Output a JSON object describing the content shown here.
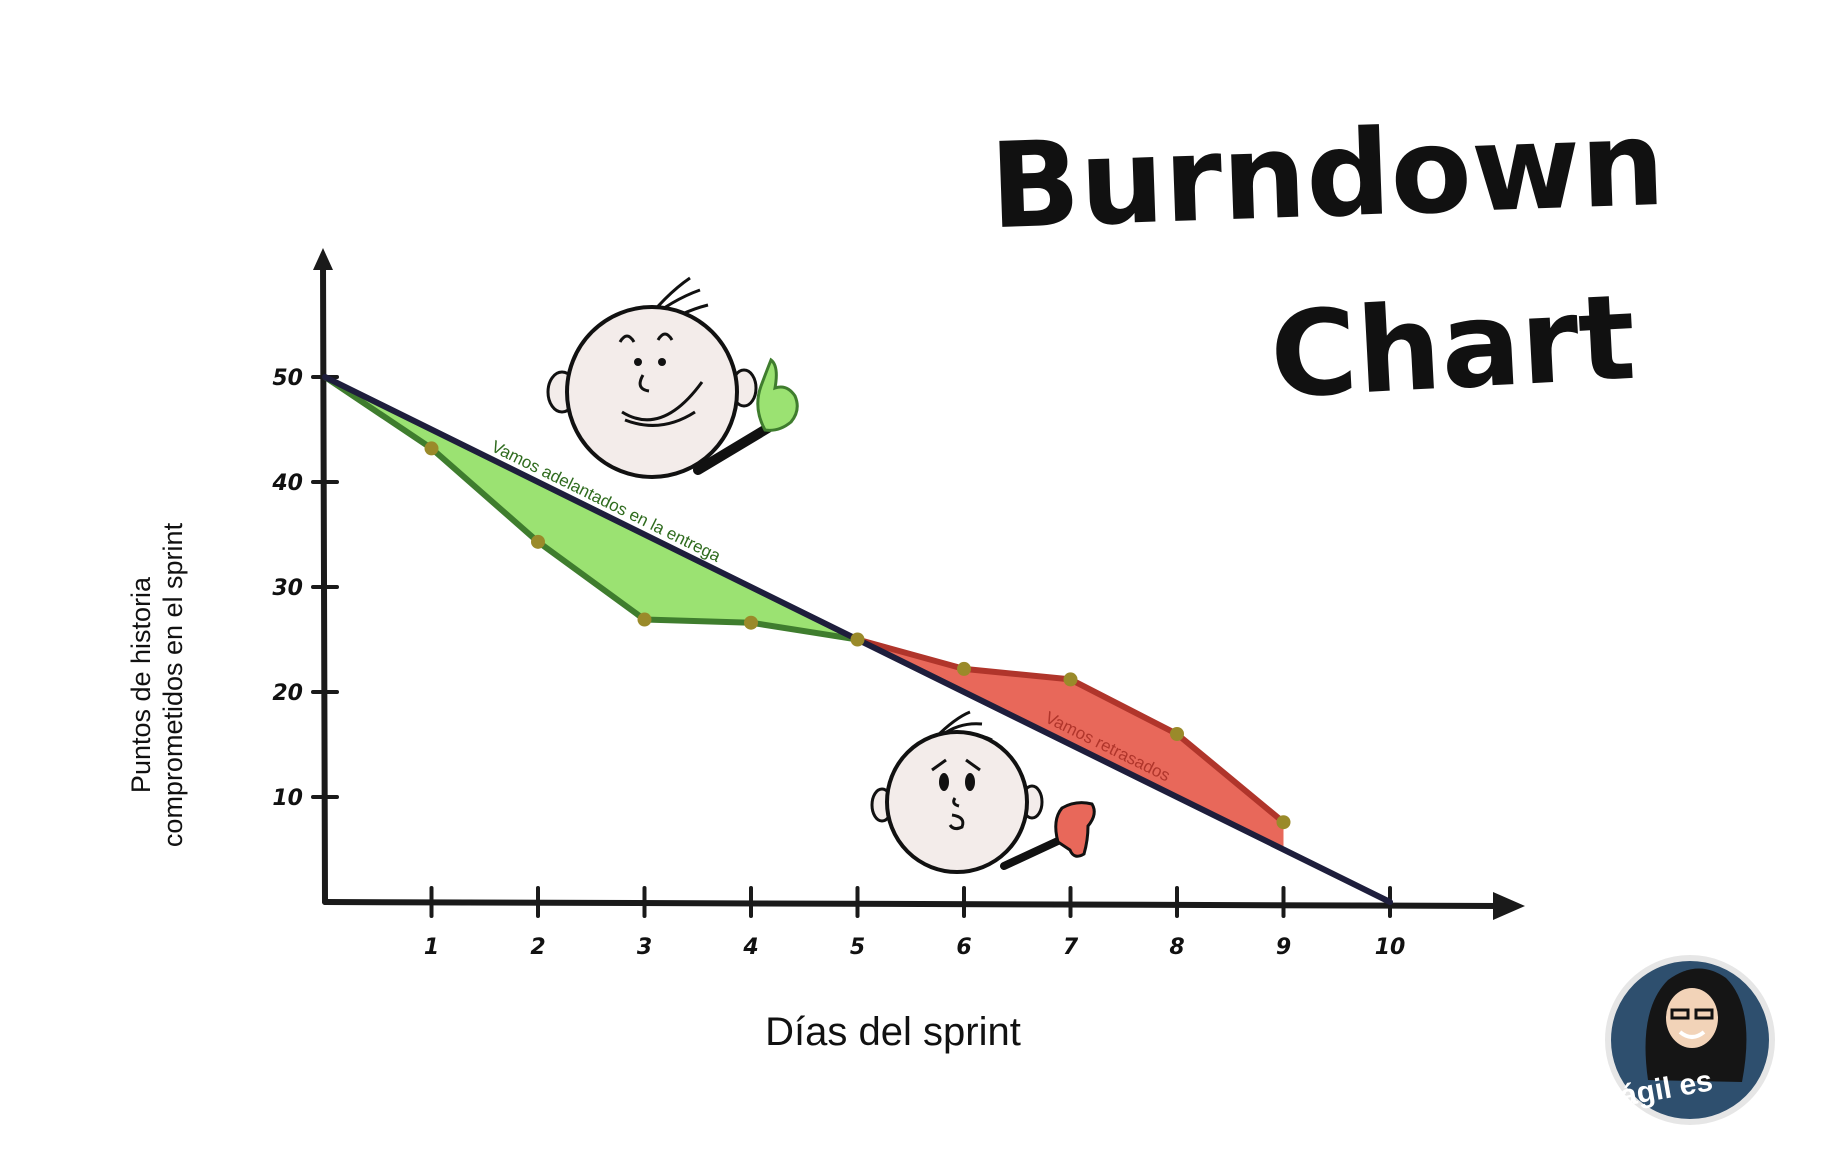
{
  "title": {
    "line1": "Burndown",
    "line2": "Chart"
  },
  "logo": {
    "text": "ágil es"
  },
  "colors": {
    "ideal_line": "#1e1e3c",
    "ahead_fill": "#9be272",
    "ahead_stroke": "#3f7d2e",
    "behind_fill": "#e8685a",
    "behind_stroke": "#b0352b",
    "point": "#9a8a2a",
    "ahead_text": "#2f6b1e",
    "behind_text": "#b0352b",
    "logo_bg": "#2e4f6e"
  },
  "chart_data": {
    "type": "line",
    "xlabel": "Días del sprint",
    "ylabel": [
      "Puntos de historia",
      "comprometidos en el sprint"
    ],
    "x_ticks": [
      1,
      2,
      3,
      4,
      5,
      6,
      7,
      8,
      9,
      10
    ],
    "y_ticks": [
      10,
      20,
      30,
      40,
      50
    ],
    "xlim": [
      0,
      11.4
    ],
    "ylim": [
      0,
      62
    ],
    "series": [
      {
        "role": "ideal",
        "x": [
          0,
          10
        ],
        "values": [
          50,
          0
        ]
      },
      {
        "role": "actual",
        "x": [
          0,
          1,
          2,
          3,
          4,
          5,
          6,
          7,
          8,
          9
        ],
        "values": [
          50,
          43.2,
          34.3,
          26.9,
          26.6,
          25.0,
          22.2,
          21.2,
          16.0,
          7.6
        ]
      }
    ],
    "annotations": {
      "ahead": "Vamos adelantados en la entrega",
      "behind": "Vamos retrasados"
    }
  }
}
